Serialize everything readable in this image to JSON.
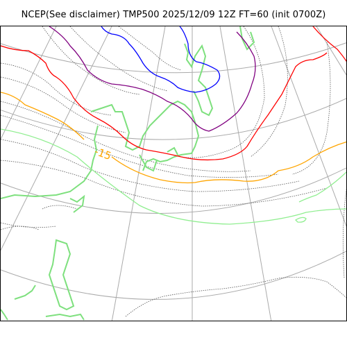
{
  "title": "NCEP(See disclaimer) TMP500 2025/12/09 12Z FT=60 (init 0700Z)",
  "contour_labels": [
    {
      "text": "-15",
      "color": "#ffa500"
    }
  ],
  "colors": {
    "graticule": "#aaaaaa",
    "coastline": "#555555",
    "isotherm_minor": "#555555",
    "isotherm_orange": "#ffa500",
    "isotherm_red": "#ff0000",
    "isotherm_purple": "#800080",
    "isotherm_blue": "#0000ff",
    "isotherm_green": "#90ee90",
    "land_outline": "#7ee07e"
  }
}
